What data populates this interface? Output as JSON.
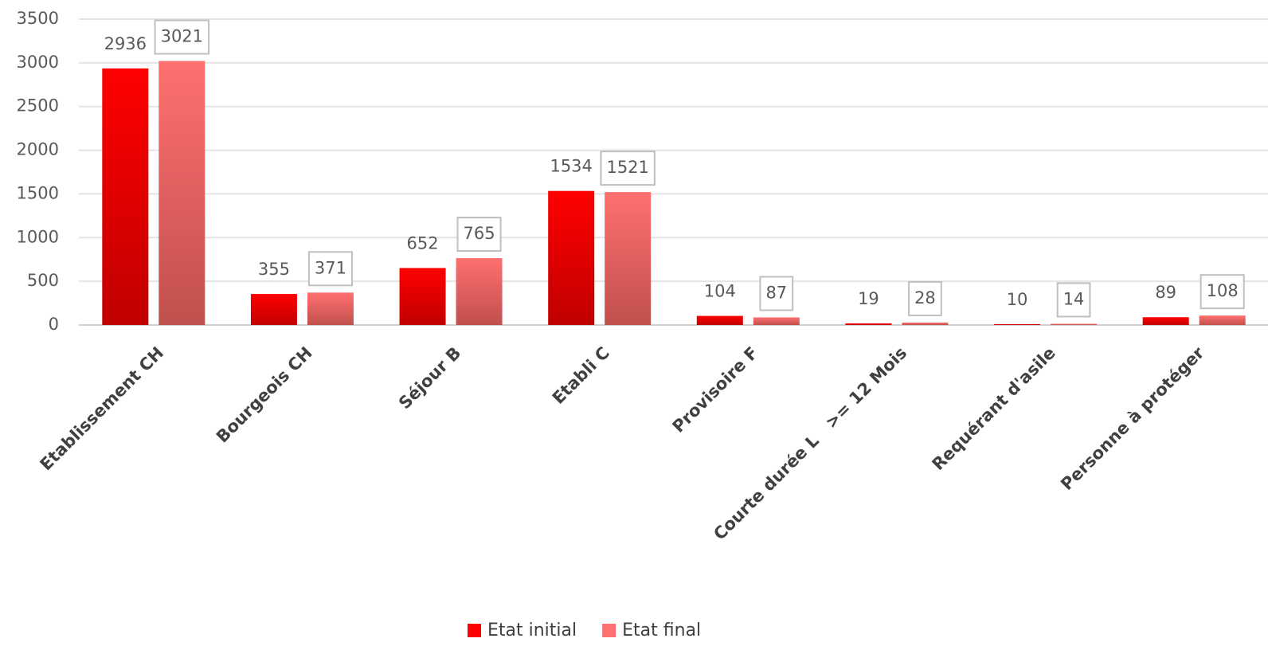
{
  "chart_data": {
    "type": "bar",
    "categories": [
      "Etablissement CH",
      "Bourgeois CH",
      "Séjour B",
      "Etabli C",
      "Provisoire F",
      "Courte durée L   >= 12 Mois",
      "Requérant d'asile",
      "Personne à protéger"
    ],
    "series": [
      {
        "name": "Etat initial",
        "color": "#ff0000",
        "values": [
          2936,
          355,
          652,
          1534,
          104,
          19,
          10,
          89
        ]
      },
      {
        "name": "Etat final",
        "color": "#ff7070",
        "values": [
          3021,
          371,
          765,
          1521,
          87,
          28,
          14,
          108
        ]
      }
    ],
    "ylim": [
      0,
      3500
    ],
    "yticks": [
      0,
      500,
      1000,
      1500,
      2000,
      2500,
      3000,
      3500
    ],
    "grid": true,
    "legend": "bottom"
  }
}
